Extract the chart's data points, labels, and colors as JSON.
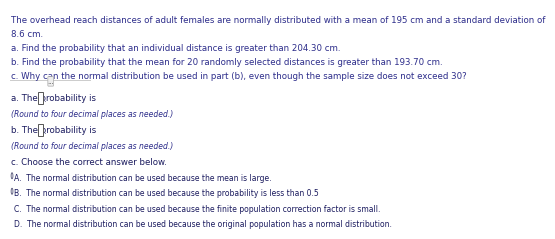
{
  "title_lines": [
    "The overhead reach distances of adult females are normally distributed with a mean of 195 cm and a standard deviation of",
    "8.6 cm.",
    "a. Find the probability that an individual distance is greater than 204.30 cm.",
    "b. Find the probability that the mean for 20 randomly selected distances is greater than 193.70 cm.",
    "c. Why can the normal distribution be used in part (b), even though the sample size does not exceed 30?"
  ],
  "section_a_label": "a. The probability is",
  "section_a_note": "(Round to four decimal places as needed.)",
  "section_b_label": "b. The probability is",
  "section_b_note": "(Round to four decimal places as needed.)",
  "section_c_label": "c. Choose the correct answer below.",
  "options": [
    "A.  The normal distribution can be used because the mean is large.",
    "B.  The normal distribution can be used because the probability is less than 0.5",
    "C.  The normal distribution can be used because the finite population correction factor is small.",
    "D.  The normal distribution can be used because the original population has a normal distribution."
  ],
  "bg_color": "#ffffff",
  "text_color": "#2c2c8a",
  "body_text_color": "#1a1a5e",
  "divider_color": "#cccccc",
  "font_size_header": 6.2,
  "font_size_body": 6.2,
  "font_size_small": 5.5
}
